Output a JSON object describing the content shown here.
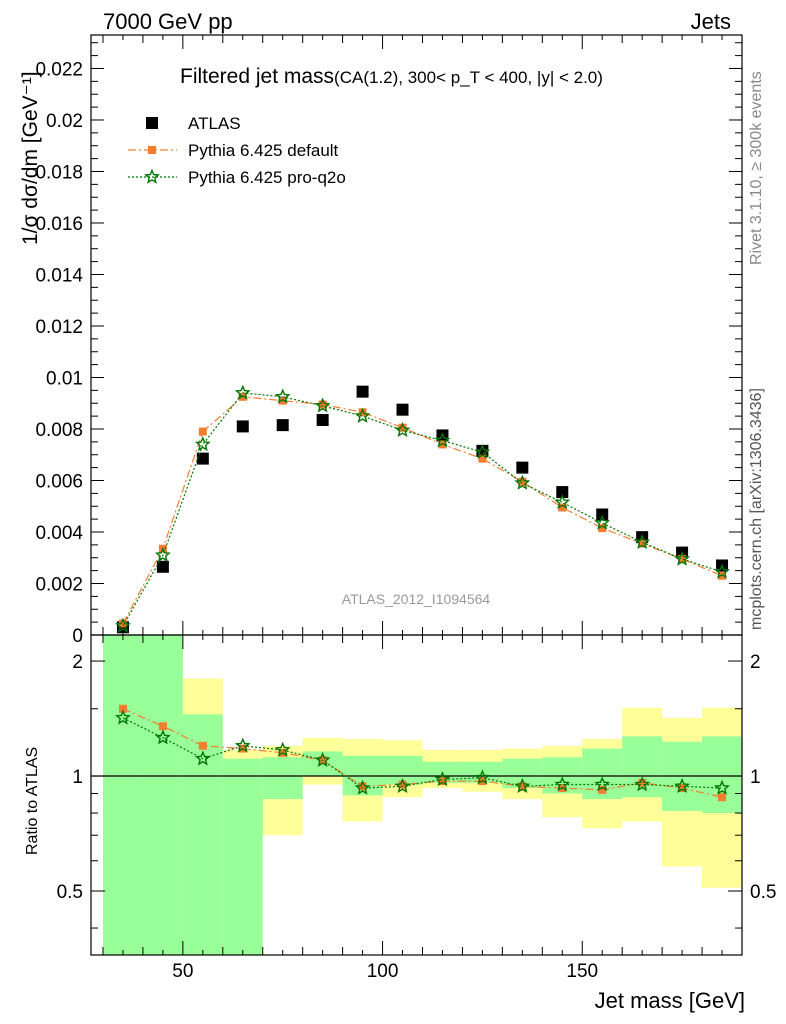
{
  "header": {
    "left": "7000 GeV pp",
    "right": "Jets"
  },
  "side_text": {
    "rivet": "Rivet 3.1.10, ≥ 300k events",
    "mcplots": "mcplots.cern.ch [arXiv:1306.3436]"
  },
  "chart_data": [
    {
      "type": "scatter",
      "panel": "main",
      "title": "Filtered jet mass",
      "subtitle": "(CA(1.2), 300< p_T < 400, |y| < 2.0)",
      "ylabel": "1/σ dσ/dm [GeV⁻¹]",
      "xlabel": "Jet mass [GeV]",
      "watermark": "ATLAS_2012_I1094564",
      "xlim": [
        27,
        190
      ],
      "ylim": [
        0,
        0.0233
      ],
      "yticks": [
        "0",
        "0.002",
        "0.004",
        "0.006",
        "0.008",
        "0.01",
        "0.012",
        "0.014",
        "0.016",
        "0.018",
        "0.02",
        "0.022"
      ],
      "legend_position": "top-left",
      "x": [
        35,
        45,
        55,
        65,
        75,
        85,
        95,
        105,
        115,
        125,
        135,
        145,
        155,
        165,
        175,
        185
      ],
      "series": [
        {
          "name": "ATLAS",
          "color": "#000000",
          "marker": "square",
          "values": [
            0.0003,
            0.00265,
            0.00685,
            0.0081,
            0.00815,
            0.00835,
            0.00945,
            0.00875,
            0.00775,
            0.00715,
            0.0065,
            0.00555,
            0.00468,
            0.0038,
            0.0032,
            0.0027
          ]
        },
        {
          "name": "Pythia 6.425 default",
          "color": "#f47d30",
          "marker": "circle",
          "values": [
            0.00045,
            0.00335,
            0.0079,
            0.00925,
            0.0091,
            0.00895,
            0.00865,
            0.00805,
            0.0074,
            0.00685,
            0.00595,
            0.00495,
            0.00415,
            0.00355,
            0.00295,
            0.0023
          ]
        },
        {
          "name": "Pythia 6.425 pro-q2o",
          "color": "#007700",
          "marker": "star",
          "values": [
            0.00035,
            0.0031,
            0.0074,
            0.0094,
            0.00925,
            0.0089,
            0.0085,
            0.00795,
            0.00755,
            0.0071,
            0.0059,
            0.00515,
            0.00435,
            0.0036,
            0.00295,
            0.00245
          ]
        }
      ]
    },
    {
      "type": "scatter",
      "panel": "ratio",
      "ylabel": "Ratio to ATLAS",
      "xlabel": "Jet mass [GeV]",
      "xlim": [
        27,
        190
      ],
      "ylim": [
        0.34,
        2.34
      ],
      "yscale": "log",
      "yticks": [
        "0.5",
        "1",
        "2"
      ],
      "xticks": [
        "50",
        "100",
        "150"
      ],
      "x": [
        35,
        45,
        55,
        65,
        75,
        85,
        95,
        105,
        115,
        125,
        135,
        145,
        155,
        165,
        175,
        185
      ],
      "bands": {
        "edges": [
          30,
          40,
          50,
          60,
          70,
          80,
          90,
          100,
          110,
          120,
          130,
          140,
          150,
          160,
          170,
          180,
          190
        ],
        "yellow": [
          [
            0.34,
            2.34
          ],
          [
            0.34,
            2.2
          ],
          [
            0.34,
            1.8
          ],
          [
            0.8,
            1.17
          ],
          [
            0.7,
            1.2
          ],
          [
            0.95,
            1.26
          ],
          [
            0.76,
            1.25
          ],
          [
            0.88,
            1.24
          ],
          [
            0.93,
            1.17
          ],
          [
            0.91,
            1.17
          ],
          [
            0.87,
            1.18
          ],
          [
            0.78,
            1.2
          ],
          [
            0.73,
            1.25
          ],
          [
            0.76,
            1.51
          ],
          [
            0.58,
            1.42
          ],
          [
            0.51,
            1.51
          ]
        ],
        "green": [
          [
            0.34,
            2.34
          ],
          [
            0.34,
            2.34
          ],
          [
            0.34,
            1.45
          ],
          [
            0.34,
            1.11
          ],
          [
            0.87,
            1.12
          ],
          [
            1.0,
            1.16
          ],
          [
            0.89,
            1.13
          ],
          [
            0.95,
            1.13
          ],
          [
            0.96,
            1.09
          ],
          [
            0.96,
            1.09
          ],
          [
            0.93,
            1.11
          ],
          [
            0.9,
            1.12
          ],
          [
            0.87,
            1.18
          ],
          [
            0.88,
            1.27
          ],
          [
            0.81,
            1.23
          ],
          [
            0.8,
            1.27
          ]
        ]
      },
      "series": [
        {
          "name": "Pythia 6.425 default",
          "color": "#f47d30",
          "marker": "circle",
          "values": [
            1.5,
            1.35,
            1.2,
            1.18,
            1.15,
            1.1,
            0.94,
            0.95,
            0.97,
            0.97,
            0.94,
            0.93,
            0.92,
            0.96,
            0.93,
            0.88
          ]
        },
        {
          "name": "Pythia 6.425 pro-q2o",
          "color": "#007700",
          "marker": "star",
          "values": [
            1.42,
            1.26,
            1.11,
            1.2,
            1.17,
            1.1,
            0.93,
            0.94,
            0.98,
            0.99,
            0.94,
            0.95,
            0.95,
            0.95,
            0.94,
            0.93
          ]
        }
      ]
    }
  ]
}
